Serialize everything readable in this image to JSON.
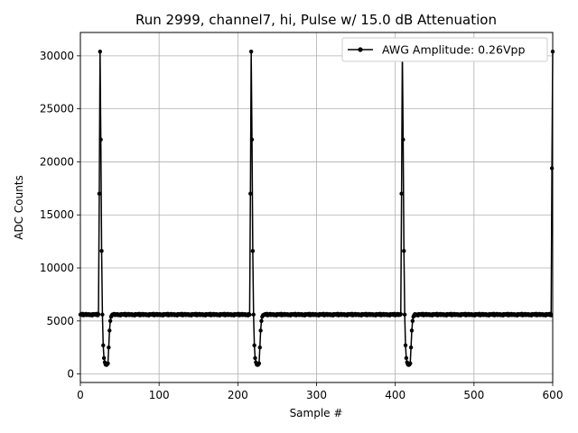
{
  "chart_data": {
    "type": "line",
    "title": "Run 2999, channel7, hi, Pulse w/ 15.0 dB Attenuation",
    "xlabel": "Sample #",
    "ylabel": "ADC Counts",
    "xlim": [
      0,
      600
    ],
    "ylim": [
      -800,
      32200
    ],
    "xticks": [
      0,
      100,
      200,
      300,
      400,
      500,
      600
    ],
    "yticks": [
      0,
      5000,
      10000,
      15000,
      20000,
      25000,
      30000
    ],
    "xtick_labels": [
      "0",
      "100",
      "200",
      "300",
      "400",
      "500",
      "600"
    ],
    "ytick_labels": [
      "0",
      "5000",
      "10000",
      "15000",
      "20000",
      "25000",
      "30000"
    ],
    "grid": true,
    "legend_position": "upper-right",
    "series": [
      {
        "name": "AWG Amplitude: 0.26Vpp",
        "color": "#000000",
        "marker": "dot",
        "pulse_period": 192,
        "pulse_starts": [
          24,
          216,
          408,
          600
        ],
        "baseline": 5600,
        "pulse_shape": [
          17000,
          30400,
          22100,
          11600,
          5600,
          2700,
          1500,
          1100,
          900,
          850,
          900,
          1000,
          2500,
          4100,
          5000,
          5400,
          5550
        ],
        "x_range": [
          0,
          600
        ]
      }
    ]
  }
}
